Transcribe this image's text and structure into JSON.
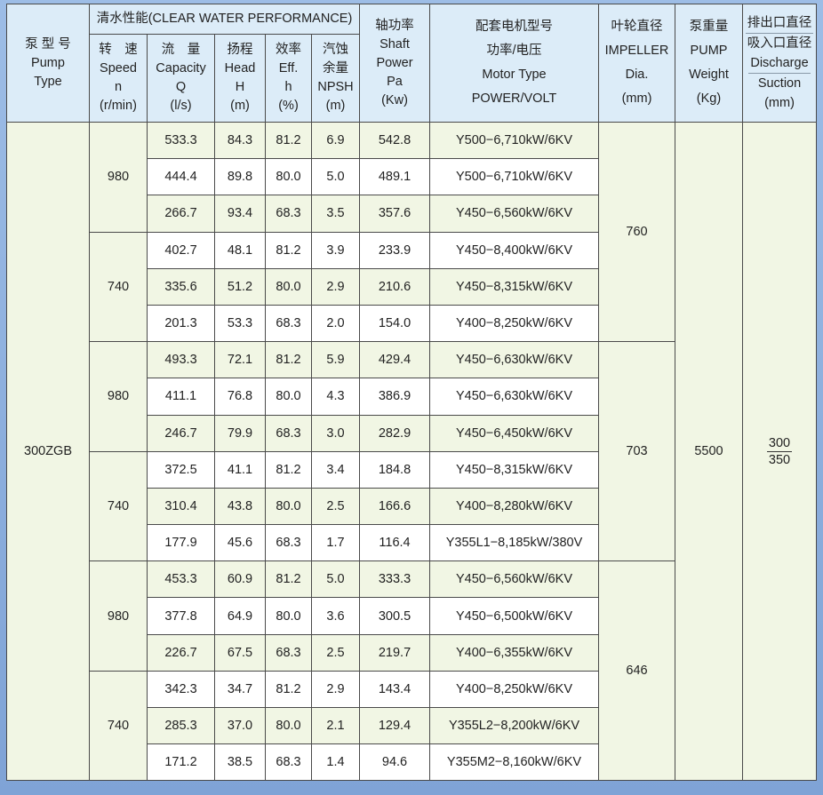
{
  "header": {
    "pump_type": [
      "泵 型 号",
      "Pump",
      "Type"
    ],
    "performance": "清水性能(CLEAR WATER PERFORMANCE)",
    "speed": [
      "转　速",
      "Speed",
      "n",
      "(r/min)"
    ],
    "capacity": [
      "流　量",
      "Capacity",
      "Q",
      "(l/s)"
    ],
    "head": [
      "扬程",
      "Head",
      "H",
      "(m)"
    ],
    "eff": [
      "效率",
      "Eff.",
      "h",
      "(%)"
    ],
    "npsh": [
      "汽蚀",
      "余量",
      "NPSH",
      "(m)"
    ],
    "shaft_power": [
      "轴功率",
      "Shaft",
      "Power",
      "Pa",
      "(Kw)"
    ],
    "motor": [
      "配套电机型号",
      "功率/电压",
      "Motor Type",
      "POWER/VOLT"
    ],
    "impeller": [
      "叶轮直径",
      "IMPELLER",
      "Dia.",
      "(mm)"
    ],
    "weight": [
      "泵重量",
      "PUMP",
      "Weight",
      "(Kg)"
    ],
    "port": [
      "排出口直径",
      "吸入口直径",
      "Discharge",
      "Suction",
      "(mm)"
    ]
  },
  "pump_type": "300ZGB",
  "weight": "5500",
  "port": {
    "discharge": "300",
    "suction": "350"
  },
  "groups": [
    {
      "impeller": "760",
      "speeds": [
        {
          "speed": "980",
          "rows": [
            [
              "533.3",
              "84.3",
              "81.2",
              "6.9",
              "542.8",
              "Y500−6,710kW/6KV"
            ],
            [
              "444.4",
              "89.8",
              "80.0",
              "5.0",
              "489.1",
              "Y500−6,710kW/6KV"
            ],
            [
              "266.7",
              "93.4",
              "68.3",
              "3.5",
              "357.6",
              "Y450−6,560kW/6KV"
            ]
          ]
        },
        {
          "speed": "740",
          "rows": [
            [
              "402.7",
              "48.1",
              "81.2",
              "3.9",
              "233.9",
              "Y450−8,400kW/6KV"
            ],
            [
              "335.6",
              "51.2",
              "80.0",
              "2.9",
              "210.6",
              "Y450−8,315kW/6KV"
            ],
            [
              "201.3",
              "53.3",
              "68.3",
              "2.0",
              "154.0",
              "Y400−8,250kW/6KV"
            ]
          ]
        }
      ]
    },
    {
      "impeller": "703",
      "speeds": [
        {
          "speed": "980",
          "rows": [
            [
              "493.3",
              "72.1",
              "81.2",
              "5.9",
              "429.4",
              "Y450−6,630kW/6KV"
            ],
            [
              "411.1",
              "76.8",
              "80.0",
              "4.3",
              "386.9",
              "Y450−6,630kW/6KV"
            ],
            [
              "246.7",
              "79.9",
              "68.3",
              "3.0",
              "282.9",
              "Y450−6,450kW/6KV"
            ]
          ]
        },
        {
          "speed": "740",
          "rows": [
            [
              "372.5",
              "41.1",
              "81.2",
              "3.4",
              "184.8",
              "Y450−8,315kW/6KV"
            ],
            [
              "310.4",
              "43.8",
              "80.0",
              "2.5",
              "166.6",
              "Y400−8,280kW/6KV"
            ],
            [
              "177.9",
              "45.6",
              "68.3",
              "1.7",
              "116.4",
              "Y355L1−8,185kW/380V"
            ]
          ]
        }
      ]
    },
    {
      "impeller": "646",
      "speeds": [
        {
          "speed": "980",
          "rows": [
            [
              "453.3",
              "60.9",
              "81.2",
              "5.0",
              "333.3",
              "Y450−6,560kW/6KV"
            ],
            [
              "377.8",
              "64.9",
              "80.0",
              "3.6",
              "300.5",
              "Y450−6,500kW/6KV"
            ],
            [
              "226.7",
              "67.5",
              "68.3",
              "2.5",
              "219.7",
              "Y400−6,355kW/6KV"
            ]
          ]
        },
        {
          "speed": "740",
          "rows": [
            [
              "342.3",
              "34.7",
              "81.2",
              "2.9",
              "143.4",
              "Y400−8,250kW/6KV"
            ],
            [
              "285.3",
              "37.0",
              "80.0",
              "2.1",
              "129.4",
              "Y355L2−8,200kW/6KV"
            ],
            [
              "171.2",
              "38.5",
              "68.3",
              "1.4",
              "94.6",
              "Y355M2−8,160kW/6KV"
            ]
          ]
        }
      ]
    }
  ],
  "colors": {
    "header_bg": "#dcecf8",
    "row_tint": "#f1f6e4",
    "frame": "#8fb0dc"
  }
}
